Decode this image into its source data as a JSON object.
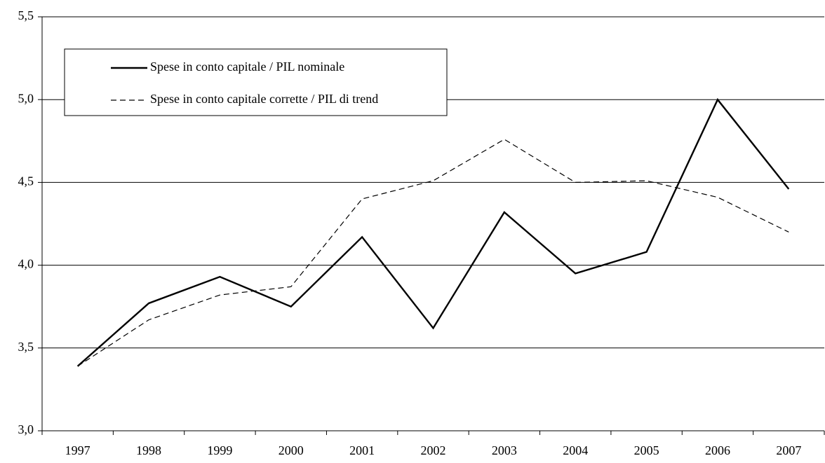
{
  "chart_data": {
    "type": "line",
    "categories": [
      "1997",
      "1998",
      "1999",
      "2000",
      "2001",
      "2002",
      "2003",
      "2004",
      "2005",
      "2006",
      "2007"
    ],
    "series": [
      {
        "name": "Spese in conto capitale / PIL nominale",
        "color": "#000000",
        "line_style": "solid",
        "values": [
          3.39,
          3.77,
          3.93,
          3.75,
          4.17,
          3.62,
          4.32,
          3.95,
          4.08,
          5.0,
          4.46
        ]
      },
      {
        "name": "Spese in conto capitale corrette / PIL di trend",
        "color": "#000000",
        "line_style": "dashed",
        "values": [
          3.39,
          3.67,
          3.82,
          3.87,
          4.4,
          4.51,
          4.76,
          4.5,
          4.51,
          4.41,
          4.2
        ]
      }
    ],
    "ylim": [
      3.0,
      5.5
    ],
    "yticks": [
      {
        "value": 3.0,
        "label": "3,0"
      },
      {
        "value": 3.5,
        "label": "3,5"
      },
      {
        "value": 4.0,
        "label": "4,0"
      },
      {
        "value": 4.5,
        "label": "4,5"
      },
      {
        "value": 5.0,
        "label": "5,0"
      },
      {
        "value": 5.5,
        "label": "5,5"
      }
    ],
    "grid": true,
    "legend": "top-left"
  }
}
